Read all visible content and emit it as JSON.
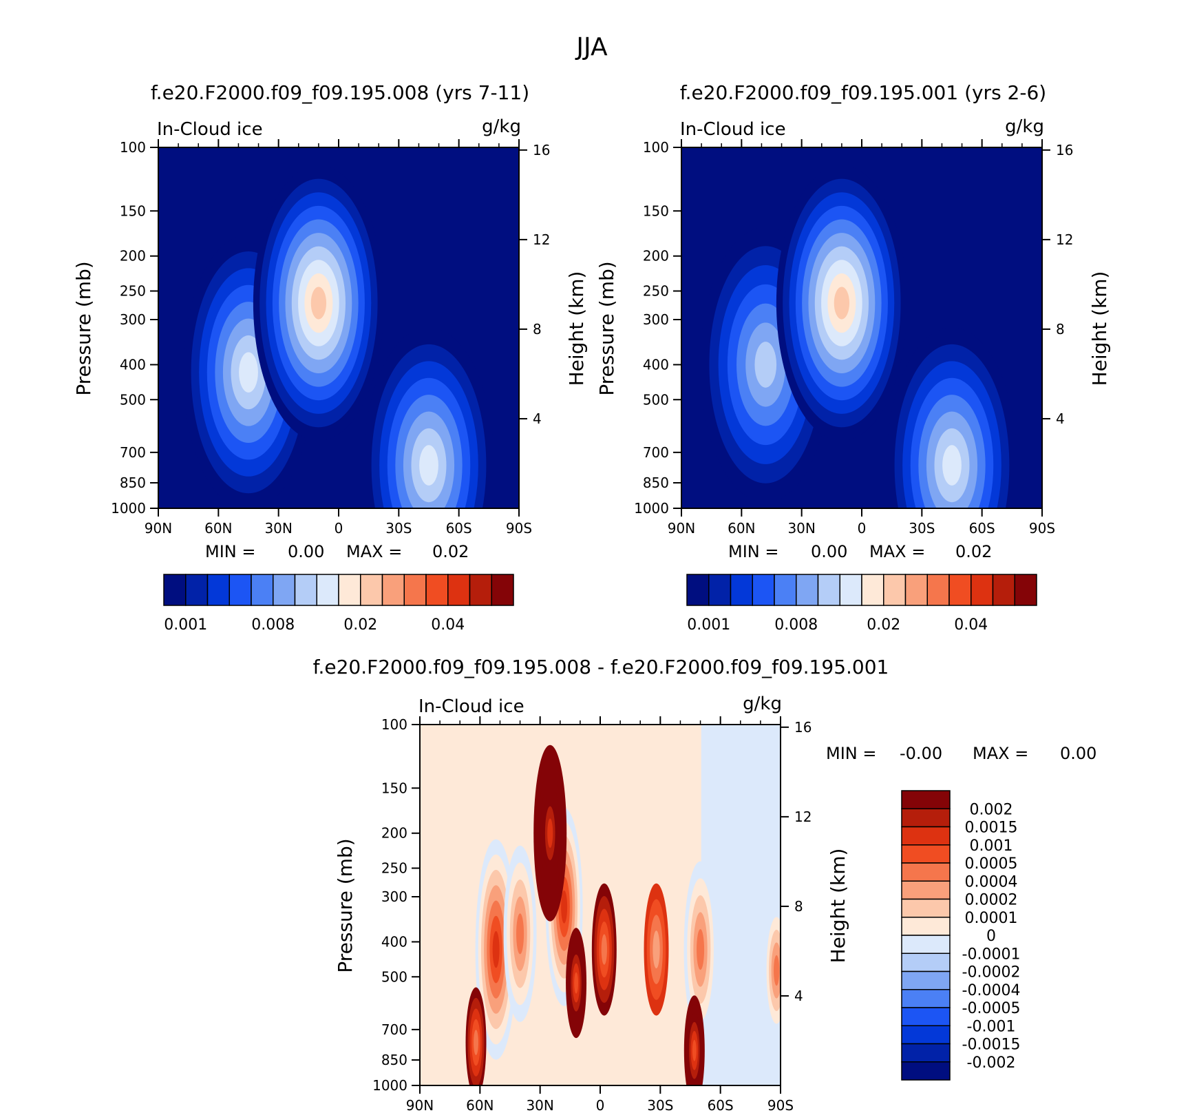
{
  "figure": {
    "title": "JJA"
  },
  "chart_data": [
    {
      "type": "heatmap",
      "title": "f.e20.F2000.f09_f09.195.008 (yrs 7-11)",
      "variable": "In-Cloud ice",
      "units": "g/kg",
      "ylabel": "Pressure (mb)",
      "ylabel_right": "Height (km)",
      "x_ticks": [
        "90N",
        "60N",
        "30N",
        "0",
        "30S",
        "60S",
        "90S"
      ],
      "y_ticks": [
        "100",
        "150",
        "200",
        "250",
        "300",
        "400",
        "500",
        "700",
        "850",
        "1000"
      ],
      "y_right_ticks": [
        "16",
        "12",
        "8",
        "4"
      ],
      "min_label": "MIN =",
      "min_value": "0.00",
      "max_label": "MAX =",
      "max_value": "0.02",
      "colorbar_labels": [
        "0.001",
        "0.008",
        "0.02",
        "0.04"
      ],
      "colorbar_colors": [
        "#000e80",
        "#0122a8",
        "#0338d8",
        "#1c55f4",
        "#4b80f5",
        "#7fa6f3",
        "#b4cdf7",
        "#dce9fb",
        "#fee9d8",
        "#fcc8ab",
        "#f9a07b",
        "#f5764c",
        "#f04d22",
        "#dd3211",
        "#b51e0b",
        "#840407"
      ],
      "blobs": [
        {
          "lat": 45,
          "p": 420,
          "level": 7,
          "size": 1.0
        },
        {
          "lat": 10,
          "p": 270,
          "level": 9,
          "size": 1.0
        },
        {
          "lat": -45,
          "p": 760,
          "level": 7,
          "size": 1.0
        }
      ]
    },
    {
      "type": "heatmap",
      "title": "f.e20.F2000.f09_f09.195.001 (yrs 2-6)",
      "variable": "In-Cloud ice",
      "units": "g/kg",
      "ylabel": "Pressure (mb)",
      "ylabel_right": "Height (km)",
      "x_ticks": [
        "90N",
        "60N",
        "30N",
        "0",
        "30S",
        "60S",
        "90S"
      ],
      "y_ticks": [
        "100",
        "150",
        "200",
        "250",
        "300",
        "400",
        "500",
        "700",
        "850",
        "1000"
      ],
      "y_right_ticks": [
        "16",
        "12",
        "8",
        "4"
      ],
      "min_label": "MIN =",
      "min_value": "0.00",
      "max_label": "MAX =",
      "max_value": "0.02",
      "colorbar_labels": [
        "0.001",
        "0.008",
        "0.02",
        "0.04"
      ],
      "colorbar_colors": [
        "#000e80",
        "#0122a8",
        "#0338d8",
        "#1c55f4",
        "#4b80f5",
        "#7fa6f3",
        "#b4cdf7",
        "#dce9fb",
        "#fee9d8",
        "#fcc8ab",
        "#f9a07b",
        "#f5764c",
        "#f04d22",
        "#dd3211",
        "#b51e0b",
        "#840407"
      ],
      "blobs": [
        {
          "lat": 48,
          "p": 400,
          "level": 6,
          "size": 1.0
        },
        {
          "lat": 10,
          "p": 270,
          "level": 9,
          "size": 1.0
        },
        {
          "lat": -45,
          "p": 760,
          "level": 7,
          "size": 1.0
        }
      ]
    },
    {
      "type": "heatmap",
      "title": "f.e20.F2000.f09_f09.195.008 - f.e20.F2000.f09_f09.195.001",
      "variable": "In-Cloud ice",
      "units": "g/kg",
      "ylabel": "Pressure (mb)",
      "ylabel_right": "Height (km)",
      "x_ticks": [
        "90N",
        "60N",
        "30N",
        "0",
        "30S",
        "60S",
        "90S"
      ],
      "y_ticks": [
        "100",
        "150",
        "200",
        "250",
        "300",
        "400",
        "500",
        "700",
        "850",
        "1000"
      ],
      "y_right_ticks": [
        "16",
        "12",
        "8",
        "4"
      ],
      "min_label": "MIN =",
      "min_value": "-0.00",
      "max_label": "MAX =",
      "max_value": "0.00",
      "colorbar_labels": [
        "0.002",
        "0.0015",
        "0.001",
        "0.0005",
        "0.0004",
        "0.0002",
        "0.0001",
        "0",
        "-0.0001",
        "-0.0002",
        "-0.0004",
        "-0.0005",
        "-0.001",
        "-0.0015",
        "-0.002"
      ],
      "colorbar_colors": [
        "#840407",
        "#b51e0b",
        "#dd3211",
        "#f04d22",
        "#f5764c",
        "#f9a07b",
        "#fcc8ab",
        "#fee9d8",
        "#dce9fb",
        "#b4cdf7",
        "#7fa6f3",
        "#4b80f5",
        "#1c55f4",
        "#0338d8",
        "#0122a8",
        "#000e80"
      ],
      "blobs": [
        {
          "lat": 52,
          "p": 420,
          "level": 13,
          "size": 1.0
        },
        {
          "lat": 40,
          "p": 380,
          "level": 11,
          "size": 0.8
        },
        {
          "lat": 18,
          "p": 320,
          "level": 13,
          "size": 0.9
        },
        {
          "lat": 25,
          "p": 200,
          "level": 2,
          "size": 0.8
        },
        {
          "lat": 12,
          "p": 520,
          "level": 3,
          "size": 0.5
        },
        {
          "lat": -2,
          "p": 420,
          "level": 4,
          "size": 0.6
        },
        {
          "lat": -28,
          "p": 420,
          "level": 5,
          "size": 0.6
        },
        {
          "lat": -50,
          "p": 420,
          "level": 11,
          "size": 0.8
        },
        {
          "lat": -47,
          "p": 800,
          "level": 3,
          "size": 0.5
        },
        {
          "lat": -88,
          "p": 480,
          "level": 11,
          "size": 0.6
        },
        {
          "lat": 62,
          "p": 760,
          "level": 4,
          "size": 0.5
        }
      ]
    }
  ]
}
